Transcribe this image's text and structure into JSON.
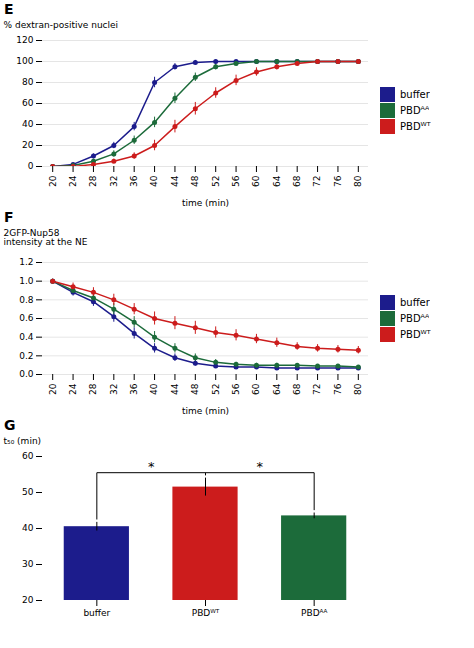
{
  "chart_data": [
    {
      "type": "line",
      "title": "E",
      "x": [
        20,
        24,
        28,
        32,
        36,
        40,
        44,
        48,
        52,
        56,
        60,
        64,
        68,
        72,
        76,
        80
      ],
      "series": [
        {
          "name": "buffer",
          "color": "#1c1c8c",
          "values": [
            0,
            2,
            10,
            20,
            38,
            80,
            95,
            99,
            100,
            100,
            100,
            100,
            100,
            100,
            100,
            100
          ],
          "errors": [
            0,
            1,
            2,
            3,
            4,
            5,
            3,
            2,
            0,
            0,
            0,
            0,
            0,
            0,
            0,
            0
          ]
        },
        {
          "name": "PBDᴬᴬ",
          "color": "#1c6b3a",
          "values": [
            0,
            1,
            5,
            12,
            25,
            42,
            65,
            85,
            95,
            98,
            100,
            100,
            100,
            100,
            100,
            100
          ],
          "errors": [
            0,
            1,
            2,
            3,
            4,
            5,
            5,
            4,
            3,
            2,
            1,
            0,
            0,
            0,
            0,
            0
          ]
        },
        {
          "name": "PBDᵂᵀ",
          "color": "#cc1c1c",
          "values": [
            0,
            0,
            2,
            5,
            10,
            20,
            38,
            55,
            70,
            82,
            90,
            95,
            98,
            100,
            100,
            100
          ],
          "errors": [
            0,
            0,
            1,
            2,
            3,
            5,
            6,
            6,
            5,
            5,
            4,
            3,
            2,
            1,
            0,
            0
          ]
        }
      ],
      "xlabel": "time (min)",
      "ylabel": "% dextran-positive nuclei",
      "xlim": [
        18,
        82
      ],
      "xticks": [
        20,
        24,
        28,
        32,
        36,
        40,
        44,
        48,
        52,
        56,
        60,
        64,
        68,
        72,
        76,
        80
      ],
      "ylim": [
        0,
        120
      ],
      "yticks": [
        0,
        20,
        40,
        60,
        80,
        100,
        120
      ],
      "grid": "y",
      "legend": "right",
      "marker": "circle"
    },
    {
      "type": "line",
      "title": "F",
      "x": [
        20,
        24,
        28,
        32,
        36,
        40,
        44,
        48,
        52,
        56,
        60,
        64,
        68,
        72,
        76,
        80
      ],
      "series": [
        {
          "name": "buffer",
          "color": "#1c1c8c",
          "values": [
            1.0,
            0.88,
            0.78,
            0.62,
            0.44,
            0.28,
            0.18,
            0.12,
            0.09,
            0.08,
            0.08,
            0.07,
            0.07,
            0.07,
            0.07,
            0.07
          ],
          "errors": [
            0.02,
            0.04,
            0.05,
            0.06,
            0.06,
            0.05,
            0.04,
            0.03,
            0.02,
            0.02,
            0.01,
            0.01,
            0.01,
            0.01,
            0.01,
            0.01
          ]
        },
        {
          "name": "PBDᴬᴬ",
          "color": "#1c6b3a",
          "values": [
            1.0,
            0.9,
            0.82,
            0.7,
            0.56,
            0.4,
            0.28,
            0.18,
            0.13,
            0.11,
            0.1,
            0.1,
            0.1,
            0.09,
            0.09,
            0.08
          ],
          "errors": [
            0.02,
            0.04,
            0.05,
            0.06,
            0.06,
            0.06,
            0.05,
            0.04,
            0.03,
            0.02,
            0.02,
            0.02,
            0.01,
            0.01,
            0.01,
            0.01
          ]
        },
        {
          "name": "PBDᵂᵀ",
          "color": "#cc1c1c",
          "values": [
            1.0,
            0.94,
            0.88,
            0.8,
            0.7,
            0.6,
            0.55,
            0.5,
            0.45,
            0.42,
            0.38,
            0.34,
            0.3,
            0.28,
            0.27,
            0.26
          ],
          "errors": [
            0.02,
            0.04,
            0.05,
            0.06,
            0.06,
            0.07,
            0.07,
            0.07,
            0.06,
            0.06,
            0.05,
            0.05,
            0.04,
            0.04,
            0.04,
            0.04
          ]
        }
      ],
      "xlabel": "time (min)",
      "ylabel": "2GFP-Nup58\nintensity at the NE",
      "xlim": [
        18,
        82
      ],
      "xticks": [
        20,
        24,
        28,
        32,
        36,
        40,
        44,
        48,
        52,
        56,
        60,
        64,
        68,
        72,
        76,
        80
      ],
      "ylim": [
        0,
        1.2
      ],
      "yticks": [
        {
          "value": 0,
          "label": "0.0"
        },
        0.2,
        0.4,
        0.6,
        0.8,
        {
          "value": 1,
          "label": "1.0"
        },
        1.2
      ],
      "grid": "y",
      "legend": "right",
      "marker": "circle"
    },
    {
      "type": "bar",
      "title": "G",
      "categories": [
        "buffer",
        "PBDᵂᵀ",
        "PBDᴬᴬ"
      ],
      "values": [
        40.5,
        51.5,
        43.5
      ],
      "errors": [
        1.2,
        2.5,
        0.8
      ],
      "colors": [
        "#1c1c8c",
        "#cc1c1c",
        "#1c6b3a"
      ],
      "ylabel": "t₅₀ (min)",
      "ylim": [
        20,
        60
      ],
      "yticks": [
        20,
        30,
        40,
        50,
        60
      ],
      "annotations": [
        {
          "text": "*",
          "from": "buffer",
          "to": "PBDᵂᵀ",
          "y": 55.5
        },
        {
          "text": "*",
          "from": "PBDᵂᵀ",
          "to": "PBDᴬᴬ",
          "y": 55.5
        }
      ]
    }
  ]
}
